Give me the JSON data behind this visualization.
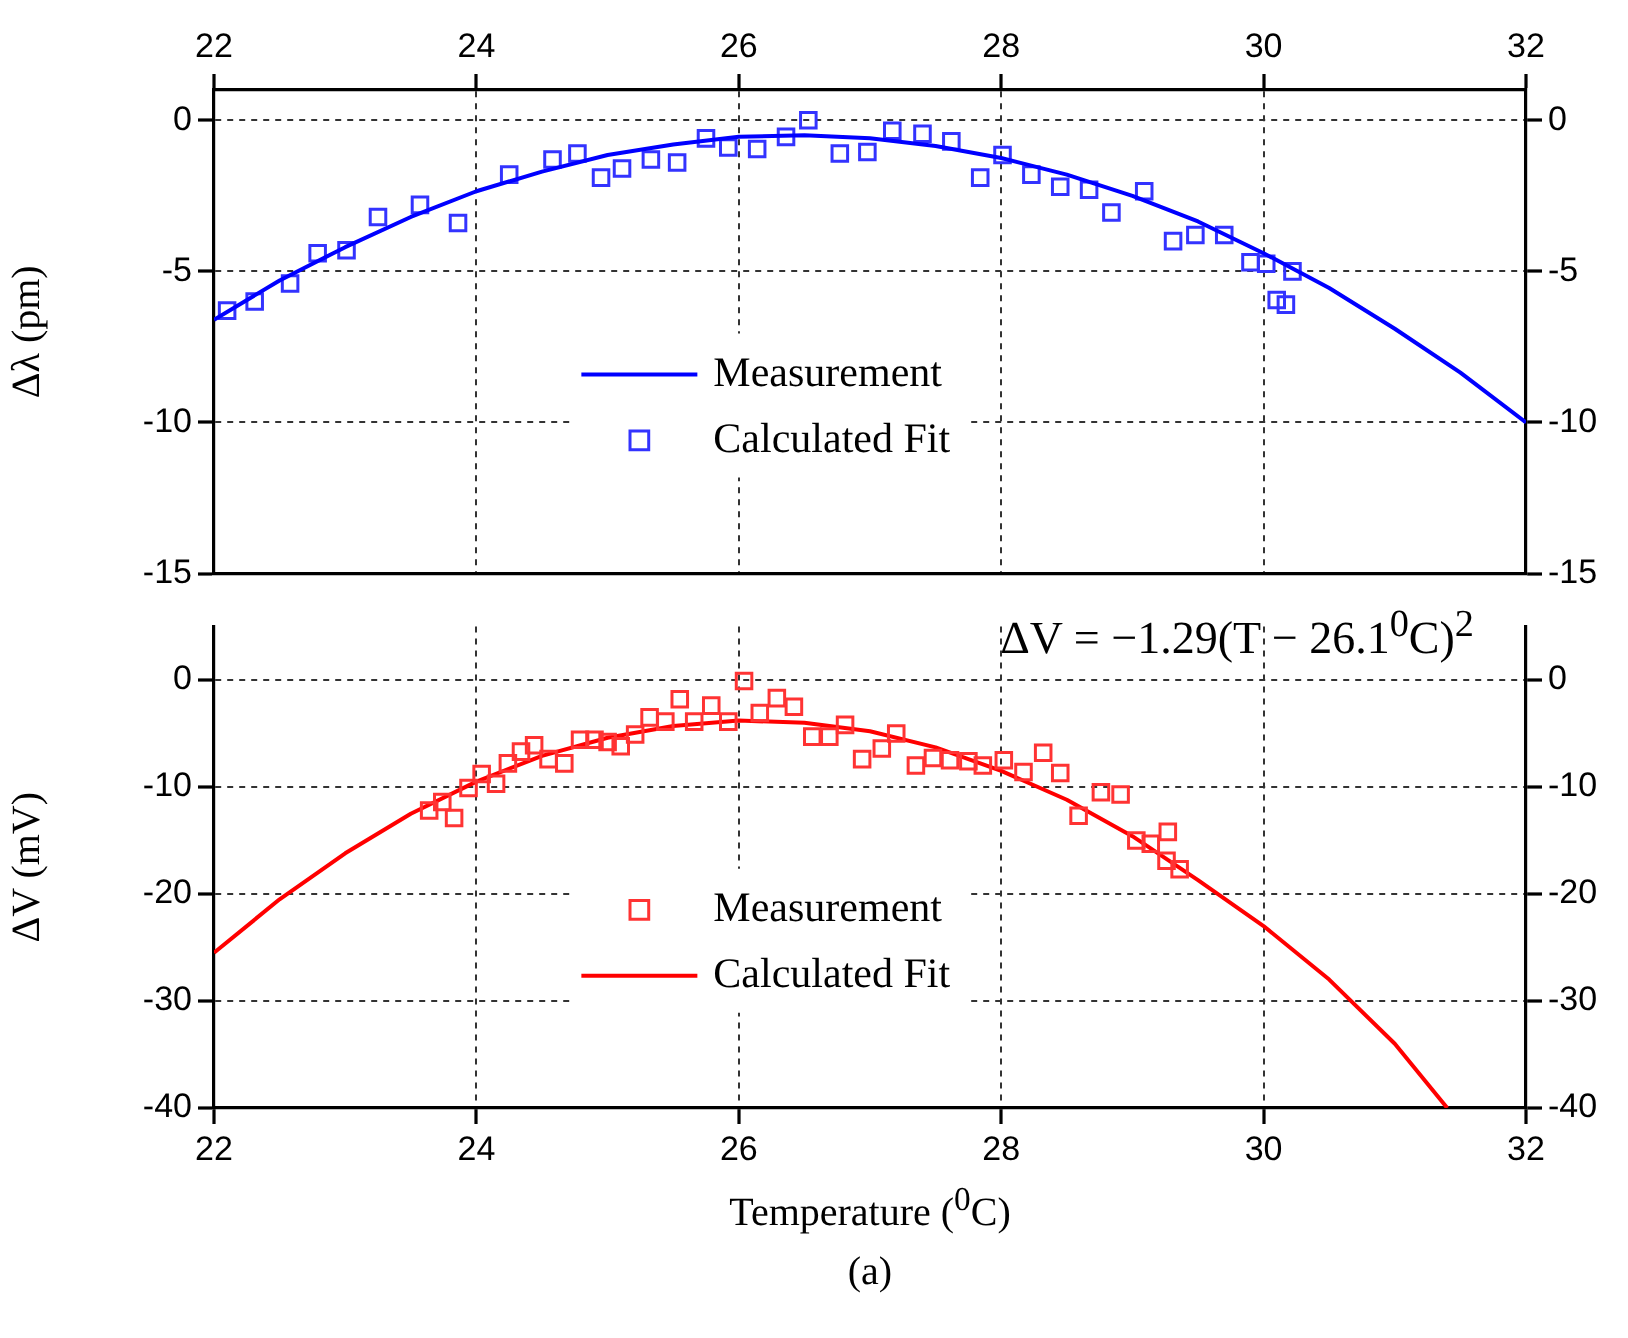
{
  "chart_data": [
    {
      "type": "scatter",
      "ylabel": "Δλ (pm)",
      "xlim": [
        22,
        32
      ],
      "x2lim": [
        22,
        32
      ],
      "x2ticks": [
        22,
        24,
        26,
        28,
        30,
        32
      ],
      "ylim": [
        -15,
        1
      ],
      "yticks": [
        -15,
        -10,
        -5,
        0
      ],
      "y2lim": [
        -15,
        1
      ],
      "y2ticks": [
        -15,
        -10,
        -5,
        0
      ],
      "grid": true,
      "legend": "center",
      "series": [
        {
          "name": "Measurement",
          "type": "line",
          "color": "#0000ff",
          "x": [
            22,
            22.5,
            23,
            23.5,
            24,
            24.5,
            25,
            25.5,
            26,
            26.5,
            27,
            27.5,
            28,
            28.5,
            29,
            29.5,
            30,
            30.5,
            31,
            31.5,
            32
          ],
          "values": [
            -6.6,
            -5.3,
            -4.2,
            -3.2,
            -2.35,
            -1.7,
            -1.15,
            -0.8,
            -0.55,
            -0.5,
            -0.6,
            -0.85,
            -1.25,
            -1.8,
            -2.5,
            -3.35,
            -4.4,
            -5.55,
            -6.9,
            -8.35,
            -10
          ]
        },
        {
          "name": "Calculated Fit",
          "marker": "square",
          "color": "#3333ff",
          "x": [
            22.1,
            22.31,
            22.58,
            22.79,
            23.01,
            23.25,
            23.57,
            23.86,
            24.25,
            24.58,
            24.77,
            24.95,
            25.11,
            25.33,
            25.53,
            25.75,
            25.92,
            26.14,
            26.36,
            26.53,
            26.77,
            26.98,
            27.17,
            27.4,
            27.62,
            27.84,
            28.01,
            28.23,
            28.45,
            28.67,
            28.84,
            29.09,
            29.31,
            29.48,
            29.7,
            29.9,
            30.02,
            30.22,
            30.1,
            30.17
          ],
          "values": [
            -6.3,
            -6,
            -5.4,
            -4.4,
            -4.3,
            -3.2,
            -2.8,
            -3.4,
            -1.8,
            -1.3,
            -1.1,
            -1.9,
            -1.6,
            -1.3,
            -1.4,
            -0.6,
            -0.9,
            -0.95,
            -0.55,
            0,
            -1.1,
            -1.05,
            -0.35,
            -0.45,
            -0.7,
            -1.9,
            -1.15,
            -1.8,
            -2.2,
            -2.3,
            -3.05,
            -2.35,
            -4,
            -3.8,
            -3.8,
            -4.7,
            -4.75,
            -5,
            -5.95,
            -6.1
          ]
        }
      ]
    },
    {
      "type": "scatter",
      "xlabel": "Temperature ($^{0}$C)",
      "ylabel": "ΔV (mV)",
      "xlim": [
        22,
        32
      ],
      "xticks": [
        22,
        24,
        26,
        28,
        30,
        32
      ],
      "ylim": [
        -40,
        5
      ],
      "yticks": [
        -40,
        -30,
        -20,
        -10,
        0
      ],
      "y2lim": [
        -40,
        5
      ],
      "y2ticks": [
        -40,
        -30,
        -20,
        -10,
        0
      ],
      "grid": true,
      "legend": "center",
      "annotations": [
        "ΔV = −1.29(T − 26.1$^{0}$C)$^{2}$",
        "(a)"
      ],
      "series": [
        {
          "name": "Measurement",
          "marker": "square",
          "color": "#ff3333",
          "x": [
            23.64,
            23.74,
            23.83,
            23.94,
            24.04,
            24.15,
            24.24,
            24.34,
            24.44,
            24.55,
            24.67,
            24.79,
            24.9,
            25,
            25.1,
            25.21,
            25.32,
            25.44,
            25.55,
            25.66,
            25.79,
            25.92,
            26.04,
            26.16,
            26.29,
            26.42,
            26.56,
            26.69,
            26.81,
            26.94,
            27.09,
            27.2,
            27.35,
            27.48,
            27.61,
            27.75,
            27.86,
            28.02,
            28.17,
            28.32,
            28.45,
            28.59,
            28.76,
            28.91,
            29.03,
            29.14,
            29.27,
            29.26,
            29.36
          ],
          "values": [
            -12.2,
            -11.4,
            -12.9,
            -10.1,
            -8.8,
            -9.7,
            -7.8,
            -6.7,
            -6.1,
            -7.4,
            -7.8,
            -5.6,
            -5.6,
            -5.8,
            -6.2,
            -5.1,
            -3.5,
            -3.9,
            -1.8,
            -3.9,
            -2.4,
            -3.9,
            -0.1,
            -3.1,
            -1.7,
            -2.5,
            -5.3,
            -5.3,
            -4.2,
            -7.4,
            -6.4,
            -5,
            -8,
            -7.3,
            -7.5,
            -7.6,
            -8,
            -7.5,
            -8.6,
            -6.8,
            -8.7,
            -12.7,
            -10.5,
            -10.7,
            -15,
            -15.3,
            -14.2,
            -16.9,
            -17.7
          ]
        },
        {
          "name": "Calculated Fit",
          "type": "line",
          "color": "#ff0000",
          "x": [
            22,
            22.5,
            23,
            23.5,
            24,
            24.5,
            25,
            25.5,
            26,
            26.5,
            27,
            27.5,
            28,
            28.5,
            29,
            29.5,
            30,
            30.5,
            31,
            31.4
          ],
          "values": [
            -25.5,
            -20.5,
            -16.2,
            -12.5,
            -9.5,
            -7.1,
            -5.4,
            -4.3,
            -3.8,
            -4,
            -4.8,
            -6.3,
            -8.5,
            -11.2,
            -14.6,
            -18.7,
            -23,
            -28,
            -34,
            -40
          ]
        }
      ]
    }
  ]
}
